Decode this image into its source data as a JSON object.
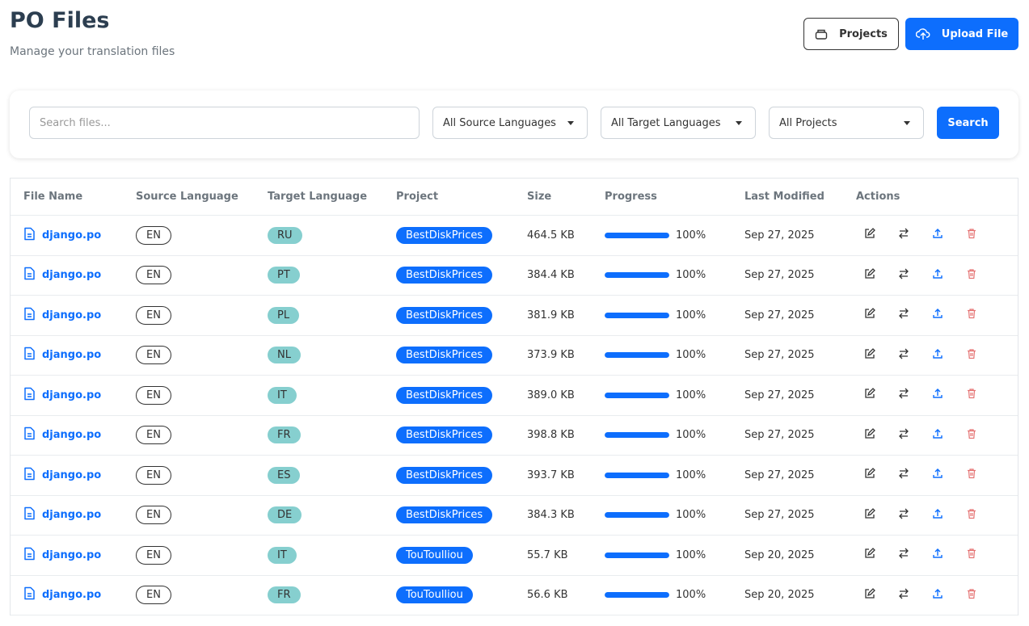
{
  "header": {
    "title": "PO Files",
    "subtitle": "Manage your translation files",
    "buttons": [
      "Projects",
      "Upload File"
    ]
  },
  "filters": {
    "search_placeholder": "Search files...",
    "selects": [
      "All Source Languages",
      "All Target Languages",
      "All Projects"
    ],
    "button": "Search"
  },
  "table": {
    "headers": [
      "File Name",
      "Source Language",
      "Target Language",
      "Project",
      "Size",
      "Progress",
      "Last Modified",
      "Actions"
    ],
    "rows": [
      {
        "file": "django.po",
        "source": "EN",
        "target": "RU",
        "project": "BestDiskPrices",
        "size": "464.5 KB",
        "progress": {
          "value": 100,
          "label": "100%"
        },
        "modified": "Sep 27, 2025"
      },
      {
        "file": "django.po",
        "source": "EN",
        "target": "PT",
        "project": "BestDiskPrices",
        "size": "384.4 KB",
        "progress": {
          "value": 100,
          "label": "100%"
        },
        "modified": "Sep 27, 2025"
      },
      {
        "file": "django.po",
        "source": "EN",
        "target": "PL",
        "project": "BestDiskPrices",
        "size": "381.9 KB",
        "progress": {
          "value": 100,
          "label": "100%"
        },
        "modified": "Sep 27, 2025"
      },
      {
        "file": "django.po",
        "source": "EN",
        "target": "NL",
        "project": "BestDiskPrices",
        "size": "373.9 KB",
        "progress": {
          "value": 100,
          "label": "100%"
        },
        "modified": "Sep 27, 2025"
      },
      {
        "file": "django.po",
        "source": "EN",
        "target": "IT",
        "project": "BestDiskPrices",
        "size": "389.0 KB",
        "progress": {
          "value": 100,
          "label": "100%"
        },
        "modified": "Sep 27, 2025"
      },
      {
        "file": "django.po",
        "source": "EN",
        "target": "FR",
        "project": "BestDiskPrices",
        "size": "398.8 KB",
        "progress": {
          "value": 100,
          "label": "100%"
        },
        "modified": "Sep 27, 2025"
      },
      {
        "file": "django.po",
        "source": "EN",
        "target": "ES",
        "project": "BestDiskPrices",
        "size": "393.7 KB",
        "progress": {
          "value": 100,
          "label": "100%"
        },
        "modified": "Sep 27, 2025"
      },
      {
        "file": "django.po",
        "source": "EN",
        "target": "DE",
        "project": "BestDiskPrices",
        "size": "384.3 KB",
        "progress": {
          "value": 100,
          "label": "100%"
        },
        "modified": "Sep 27, 2025"
      },
      {
        "file": "django.po",
        "source": "EN",
        "target": "IT",
        "project": "TouToulliou",
        "size": "55.7 KB",
        "progress": {
          "value": 100,
          "label": "100%"
        },
        "modified": "Sep 20, 2025"
      },
      {
        "file": "django.po",
        "source": "EN",
        "target": "FR",
        "project": "TouToulliou",
        "size": "56.6 KB",
        "progress": {
          "value": 100,
          "label": "100%"
        },
        "modified": "Sep 20, 2025"
      }
    ]
  }
}
